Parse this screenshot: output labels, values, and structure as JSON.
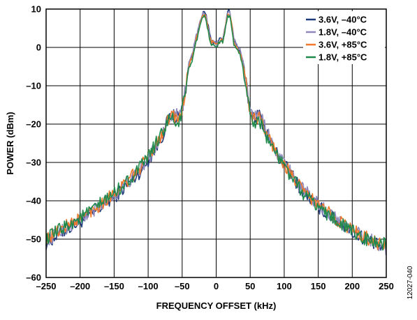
{
  "chart_data": {
    "type": "line",
    "title": "",
    "xlabel": "FREQUENCY OFFSET (kHz)",
    "ylabel": "POWER (dBm)",
    "xlim": [
      -250,
      250
    ],
    "ylim": [
      -60,
      10
    ],
    "xticks": [
      -250,
      -200,
      -150,
      -100,
      -50,
      0,
      50,
      100,
      150,
      200,
      250
    ],
    "yticks": [
      -60,
      -50,
      -40,
      -30,
      -20,
      -10,
      0,
      10
    ],
    "xtick_labels": [
      "–250",
      "–200",
      "–150",
      "–100",
      "–50",
      "0",
      "50",
      "100",
      "150",
      "200",
      "250"
    ],
    "ytick_labels": [
      "–60",
      "–50",
      "–40",
      "–30",
      "–20",
      "–10",
      "0",
      "10"
    ],
    "grid": true,
    "legend_position": "top-right",
    "figure_id": "12027-040",
    "x": [
      -250,
      -225,
      -200,
      -175,
      -150,
      -125,
      -110,
      -100,
      -90,
      -80,
      -72,
      -65,
      -60,
      -55,
      -50,
      -45,
      -40,
      -35,
      -30,
      -25,
      -20,
      -17,
      -14,
      -10,
      -7,
      -4,
      0,
      4,
      7,
      10,
      14,
      17,
      20,
      23,
      26,
      30,
      35,
      40,
      45,
      50,
      55,
      60,
      65,
      72,
      80,
      90,
      100,
      110,
      125,
      150,
      175,
      200,
      225,
      250
    ],
    "series": [
      {
        "name": "3.6V, –40°C",
        "color": "#1f3a7a",
        "values": [
          -51,
          -48,
          -45.5,
          -42.5,
          -39,
          -35,
          -32,
          -29.5,
          -26.5,
          -23.5,
          -19.5,
          -17.5,
          -18,
          -18,
          -16,
          -11,
          -4.5,
          -2,
          2,
          5.5,
          8.5,
          9.5,
          8,
          3.5,
          1.5,
          1.5,
          1,
          2,
          2,
          2,
          6,
          9.5,
          9.5,
          6,
          2,
          0.5,
          -1,
          -4.5,
          -11,
          -16.5,
          -18,
          -17.5,
          -18,
          -21.5,
          -24.5,
          -28,
          -30.5,
          -33,
          -37,
          -41.5,
          -45,
          -48,
          -50.5,
          -53
        ]
      },
      {
        "name": "1.8V, –40°C",
        "color": "#8f88bd",
        "values": [
          -50.5,
          -47.5,
          -45,
          -42,
          -38.5,
          -34.5,
          -31.5,
          -29,
          -26,
          -23,
          -19,
          -17.2,
          -17.5,
          -17.8,
          -15.5,
          -10.5,
          -4,
          -1.5,
          2.5,
          5.5,
          8.5,
          9,
          7.5,
          3,
          1.5,
          1.5,
          0.8,
          1.8,
          2,
          2.2,
          6,
          9,
          9,
          6,
          2,
          0.8,
          -0.8,
          -4,
          -10.5,
          -16,
          -17.5,
          -17,
          -17.5,
          -21,
          -24,
          -27.5,
          -30,
          -32.5,
          -36.5,
          -41,
          -44.5,
          -47.5,
          -50,
          -52.5
        ]
      },
      {
        "name": "3.6V, +85°C",
        "color": "#f0782a",
        "values": [
          -50,
          -47,
          -44.5,
          -41.5,
          -38,
          -34,
          -31,
          -28.5,
          -25.5,
          -22.5,
          -19,
          -17.5,
          -18.5,
          -19,
          -16,
          -11,
          -5,
          -2.5,
          1.5,
          5,
          8,
          8.5,
          7,
          3,
          1,
          1.5,
          0.5,
          1.5,
          2,
          1.5,
          5.5,
          8.5,
          8.5,
          5.5,
          1.5,
          0,
          -1.5,
          -5,
          -11,
          -17,
          -18.5,
          -18,
          -18.5,
          -22,
          -24.5,
          -28,
          -30.5,
          -33,
          -37,
          -41,
          -44.5,
          -47.5,
          -50,
          -52
        ]
      },
      {
        "name": "1.8V, +85°C",
        "color": "#1f8a4c",
        "values": [
          -50,
          -47,
          -44.5,
          -41.5,
          -38,
          -34,
          -31,
          -28.5,
          -25.5,
          -22.5,
          -19.5,
          -18.5,
          -19.5,
          -20,
          -16.5,
          -11.5,
          -5.5,
          -3,
          1,
          4.5,
          7.5,
          8,
          6.5,
          2.5,
          0.5,
          1,
          0,
          1,
          1.5,
          1,
          5,
          8,
          8,
          5,
          1,
          -0.5,
          -2,
          -5.5,
          -11.5,
          -18,
          -19.5,
          -19,
          -19.5,
          -22.5,
          -25,
          -28.5,
          -31,
          -33.5,
          -37.5,
          -41.5,
          -45,
          -48,
          -50.5,
          -51.5
        ]
      }
    ]
  }
}
